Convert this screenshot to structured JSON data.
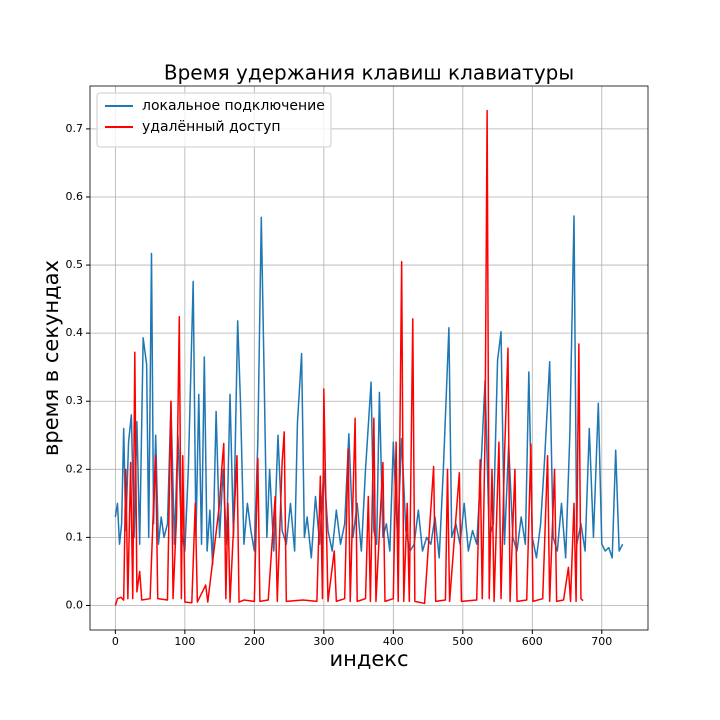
{
  "chart_data": {
    "type": "line",
    "title": "Время удержания клавиш клавиатуры",
    "x_label": "индекс",
    "y_label": "время в секундах",
    "xlim": [
      -36.5,
      766.5
    ],
    "ylim": [
      -0.036,
      0.763
    ],
    "xticks": [
      0,
      100,
      200,
      300,
      400,
      500,
      600,
      700
    ],
    "yticks": [
      {
        "value": 0,
        "label": "0.0"
      },
      0.1,
      0.2,
      0.3,
      0.4,
      0.5,
      0.6,
      0.7
    ],
    "grid": true,
    "legend": "upper left",
    "series": [
      {
        "name": "локальное подключение",
        "color": "#1f77b4",
        "x": [
          0,
          3,
          6,
          9,
          12,
          15,
          19,
          23,
          27,
          31,
          35,
          40,
          45,
          48,
          52,
          55,
          58,
          62,
          66,
          70,
          75,
          80,
          85,
          90,
          95,
          100,
          105,
          112,
          116,
          120,
          124,
          128,
          132,
          136,
          140,
          145,
          150,
          155,
          160,
          165,
          170,
          176,
          180,
          185,
          190,
          195,
          200,
          205,
          210,
          214,
          218,
          222,
          228,
          234,
          240,
          246,
          252,
          258,
          262,
          268,
          272,
          276,
          282,
          288,
          294,
          300,
          306,
          312,
          318,
          324,
          330,
          336,
          342,
          348,
          354,
          360,
          368,
          372,
          376,
          380,
          385,
          390,
          395,
          400,
          406,
          412,
          418,
          424,
          430,
          436,
          442,
          448,
          454,
          460,
          466,
          472,
          480,
          484,
          490,
          496,
          502,
          508,
          514,
          520,
          526,
          532,
          538,
          544,
          550,
          555,
          560,
          566,
          572,
          578,
          584,
          590,
          595,
          600,
          606,
          612,
          618,
          625,
          630,
          636,
          642,
          648,
          654,
          660,
          664,
          670,
          676,
          682,
          688,
          695,
          700,
          705,
          710,
          715,
          720,
          725,
          730
        ],
        "values": [
          0.13,
          0.15,
          0.09,
          0.12,
          0.26,
          0.11,
          0.24,
          0.28,
          0.1,
          0.27,
          0.09,
          0.393,
          0.354,
          0.1,
          0.517,
          0.12,
          0.25,
          0.09,
          0.13,
          0.1,
          0.12,
          0.298,
          0.09,
          0.25,
          0.11,
          0.08,
          0.2,
          0.476,
          0.1,
          0.31,
          0.09,
          0.365,
          0.08,
          0.14,
          0.06,
          0.285,
          0.1,
          0.2,
          0.09,
          0.31,
          0.1,
          0.418,
          0.3,
          0.09,
          0.15,
          0.11,
          0.08,
          0.24,
          0.57,
          0.343,
          0.1,
          0.2,
          0.08,
          0.25,
          0.11,
          0.09,
          0.15,
          0.08,
          0.268,
          0.37,
          0.1,
          0.13,
          0.07,
          0.16,
          0.09,
          0.2,
          0.11,
          0.08,
          0.14,
          0.09,
          0.12,
          0.252,
          0.1,
          0.15,
          0.08,
          0.2,
          0.328,
          0.11,
          0.09,
          0.313,
          0.1,
          0.12,
          0.08,
          0.24,
          0.1,
          0.245,
          0.11,
          0.08,
          0.09,
          0.14,
          0.08,
          0.1,
          0.09,
          0.13,
          0.07,
          0.2,
          0.408,
          0.1,
          0.12,
          0.09,
          0.15,
          0.08,
          0.11,
          0.09,
          0.2,
          0.33,
          0.1,
          0.12,
          0.36,
          0.402,
          0.09,
          0.236,
          0.1,
          0.08,
          0.13,
          0.09,
          0.343,
          0.1,
          0.07,
          0.12,
          0.22,
          0.358,
          0.1,
          0.08,
          0.15,
          0.07,
          0.25,
          0.572,
          0.09,
          0.12,
          0.08,
          0.26,
          0.1,
          0.297,
          0.09,
          0.08,
          0.085,
          0.07,
          0.228,
          0.08,
          0.09
        ]
      },
      {
        "name": "удалённый доступ",
        "color": "#ff0000",
        "x": [
          0,
          3,
          8,
          12,
          15,
          18,
          22,
          25,
          28,
          31,
          35,
          38,
          50,
          55,
          58,
          61,
          75,
          80,
          83,
          88,
          92,
          95,
          97,
          100,
          110,
          115,
          118,
          130,
          133,
          150,
          153,
          156,
          159,
          162,
          165,
          175,
          178,
          185,
          200,
          205,
          208,
          220,
          230,
          233,
          240,
          243,
          246,
          270,
          290,
          295,
          298,
          300,
          303,
          306,
          315,
          318,
          330,
          335,
          338,
          345,
          348,
          360,
          364,
          367,
          372,
          375,
          385,
          388,
          400,
          404,
          407,
          412,
          415,
          420,
          423,
          428,
          431,
          445,
          458,
          461,
          475,
          478,
          481,
          495,
          498,
          520,
          525,
          528,
          532,
          535,
          538,
          542,
          545,
          552,
          555,
          560,
          565,
          568,
          575,
          578,
          592,
          598,
          601,
          615,
          622,
          625,
          632,
          635,
          645,
          652,
          655,
          660,
          663,
          667,
          670,
          673
        ],
        "values": [
          0.0,
          0.01,
          0.012,
          0.008,
          0.2,
          0.01,
          0.21,
          0.01,
          0.372,
          0.02,
          0.05,
          0.008,
          0.01,
          0.15,
          0.22,
          0.01,
          0.008,
          0.3,
          0.01,
          0.13,
          0.424,
          0.01,
          0.22,
          0.005,
          0.004,
          0.15,
          0.005,
          0.03,
          0.005,
          0.15,
          0.2,
          0.238,
          0.01,
          0.15,
          0.005,
          0.22,
          0.005,
          0.008,
          0.006,
          0.216,
          0.006,
          0.008,
          0.16,
          0.006,
          0.21,
          0.255,
          0.006,
          0.008,
          0.006,
          0.19,
          0.01,
          0.318,
          0.15,
          0.006,
          0.08,
          0.006,
          0.01,
          0.23,
          0.006,
          0.275,
          0.006,
          0.01,
          0.16,
          0.006,
          0.275,
          0.006,
          0.21,
          0.006,
          0.01,
          0.24,
          0.006,
          0.505,
          0.006,
          0.15,
          0.006,
          0.421,
          0.006,
          0.003,
          0.204,
          0.006,
          0.008,
          0.2,
          0.006,
          0.195,
          0.006,
          0.008,
          0.214,
          0.01,
          0.25,
          0.727,
          0.01,
          0.2,
          0.006,
          0.24,
          0.01,
          0.22,
          0.378,
          0.006,
          0.2,
          0.006,
          0.008,
          0.237,
          0.006,
          0.01,
          0.22,
          0.006,
          0.2,
          0.006,
          0.008,
          0.056,
          0.006,
          0.15,
          0.006,
          0.384,
          0.01,
          0.007
        ]
      }
    ]
  }
}
